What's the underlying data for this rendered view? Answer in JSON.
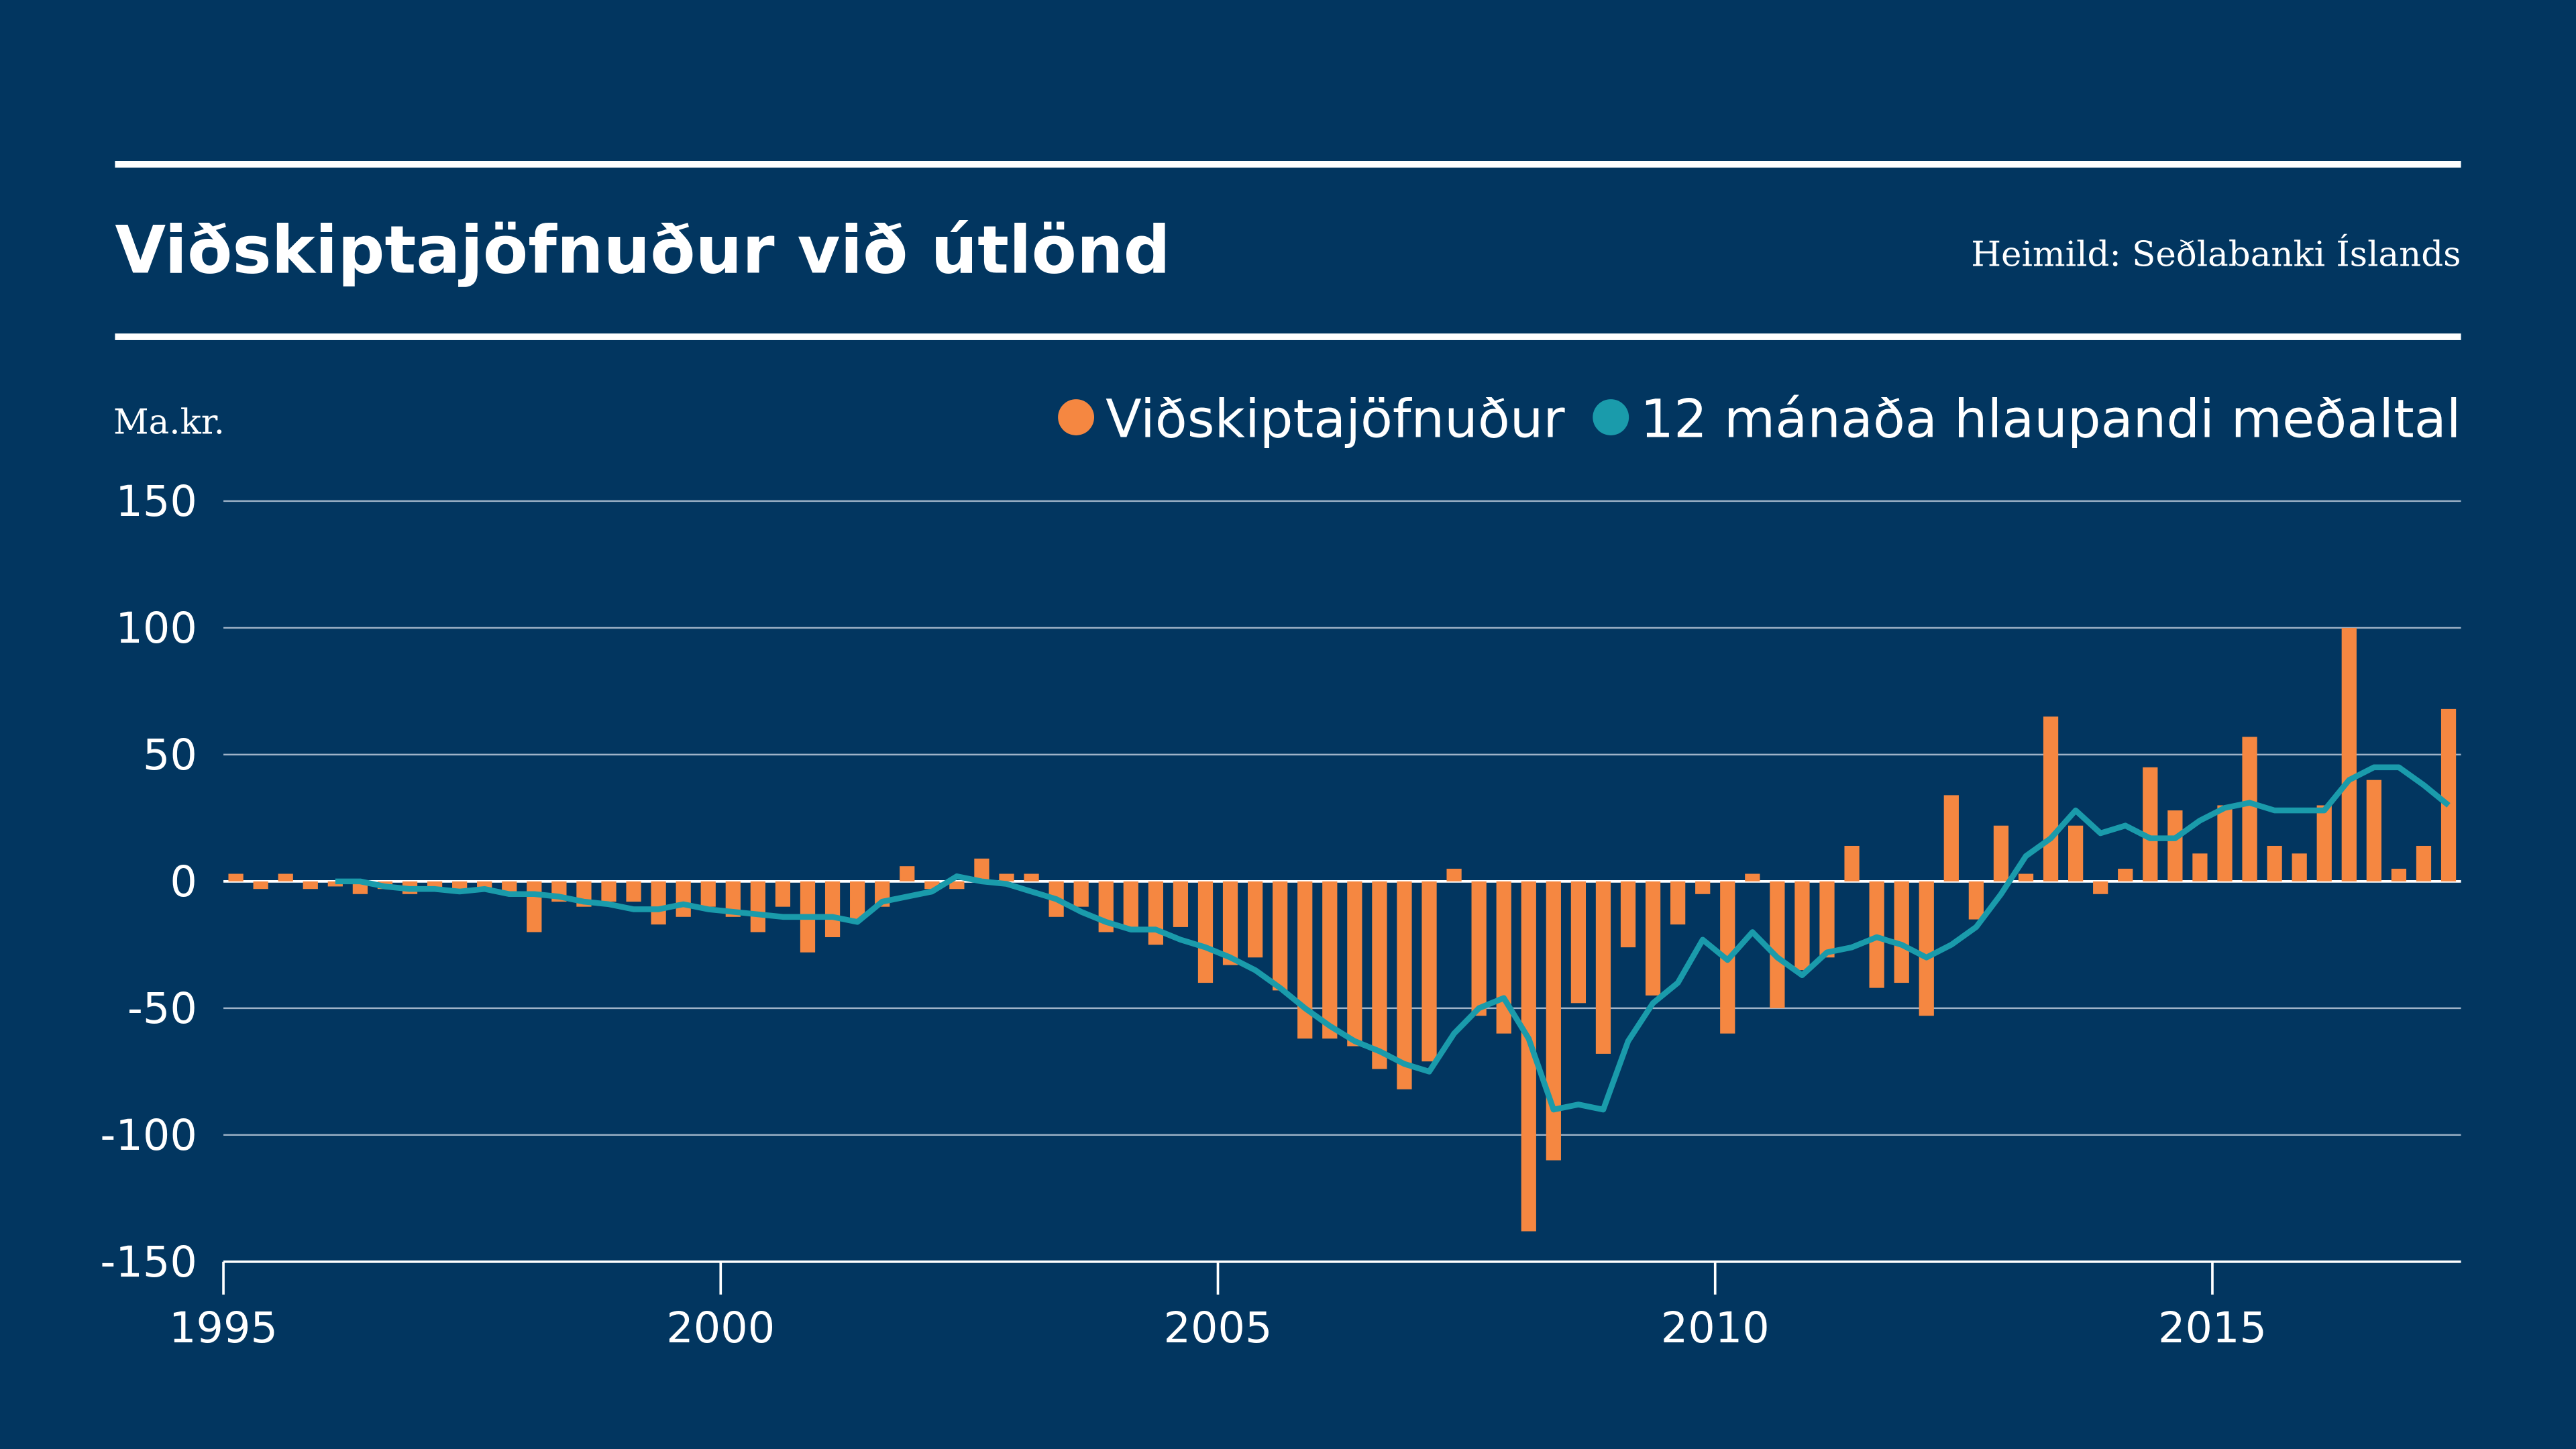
{
  "chart_data": {
    "type": "bar",
    "title": "Viðskiptajöfnuður við útlönd",
    "source": "Heimild: Seðlabanki Íslands",
    "ylabel": "Ma.kr.",
    "xlim": [
      1995,
      2017.5
    ],
    "xticks": [
      1995,
      2000,
      2005,
      2010,
      2015
    ],
    "ylim": [
      -150,
      150
    ],
    "yticks": [
      -150,
      -100,
      -50,
      0,
      50,
      100,
      150
    ],
    "grid": true,
    "legend": "top-right",
    "x": [
      1995.125,
      1995.375,
      1995.625,
      1995.875,
      1996.125,
      1996.375,
      1996.625,
      1996.875,
      1997.125,
      1997.375,
      1997.625,
      1997.875,
      1998.125,
      1998.375,
      1998.625,
      1998.875,
      1999.125,
      1999.375,
      1999.625,
      1999.875,
      2000.125,
      2000.375,
      2000.625,
      2000.875,
      2001.125,
      2001.375,
      2001.625,
      2001.875,
      2002.125,
      2002.375,
      2002.625,
      2002.875,
      2003.125,
      2003.375,
      2003.625,
      2003.875,
      2004.125,
      2004.375,
      2004.625,
      2004.875,
      2005.125,
      2005.375,
      2005.625,
      2005.875,
      2006.125,
      2006.375,
      2006.625,
      2006.875,
      2007.125,
      2007.375,
      2007.625,
      2007.875,
      2008.125,
      2008.375,
      2008.625,
      2008.875,
      2009.125,
      2009.375,
      2009.625,
      2009.875,
      2010.125,
      2010.375,
      2010.625,
      2010.875,
      2011.125,
      2011.375,
      2011.625,
      2011.875,
      2012.125,
      2012.375,
      2012.625,
      2012.875,
      2013.125,
      2013.375,
      2013.625,
      2013.875,
      2014.125,
      2014.375,
      2014.625,
      2014.875,
      2015.125,
      2015.375,
      2015.625,
      2015.875,
      2016.125,
      2016.375,
      2016.625,
      2016.875,
      2017.125,
      2017.375
    ],
    "series": [
      {
        "name": "Viðskiptajöfnuður",
        "type": "bar",
        "color": "#f58741",
        "values": [
          3,
          -3,
          3,
          -3,
          -2,
          -5,
          -3,
          -5,
          -3,
          -3,
          -3,
          -5,
          -20,
          -8,
          -10,
          -8,
          -8,
          -17,
          -14,
          -10,
          -14,
          -20,
          -10,
          -28,
          -22,
          -15,
          -10,
          6,
          -3,
          -3,
          9,
          3,
          3,
          -14,
          -10,
          -20,
          -18,
          -25,
          -18,
          -40,
          -33,
          -30,
          -43,
          -62,
          -62,
          -65,
          -74,
          -82,
          -71,
          5,
          -53,
          -60,
          -138,
          -110,
          -48,
          -68,
          -26,
          -45,
          -17,
          -5,
          -60,
          3,
          -50,
          -35,
          -30,
          14,
          -42,
          -40,
          -53,
          34,
          -15,
          22,
          3,
          65,
          22,
          -5,
          5,
          45,
          28,
          11,
          30,
          57,
          14,
          11,
          30,
          100,
          40,
          5,
          14,
          68
        ]
      },
      {
        "name": "12 mánaða hlaupandi meðaltal",
        "type": "line",
        "color": "#1a9bab",
        "values": [
          null,
          null,
          null,
          null,
          0,
          0,
          -2,
          -3,
          -3,
          -4,
          -3,
          -5,
          -5,
          -6,
          -8,
          -9,
          -11,
          -11,
          -9,
          -11,
          -12,
          -13,
          -14,
          -14,
          -14,
          -16,
          -8,
          -6,
          -4,
          2,
          0,
          -1,
          -4,
          -7,
          -12,
          -16,
          -19,
          -19,
          -23,
          -26,
          -30,
          -35,
          -42,
          -50,
          -57,
          -63,
          -67,
          -72,
          -75,
          -60,
          -50,
          -46,
          -62,
          -90,
          -88,
          -90,
          -63,
          -48,
          -40,
          -23,
          -31,
          -20,
          -30,
          -37,
          -28,
          -26,
          -22,
          -25,
          -30,
          -25,
          -18,
          -5,
          10,
          17,
          28,
          19,
          22,
          17,
          17,
          24,
          29,
          31,
          28,
          28,
          28,
          40,
          45,
          45,
          38,
          30
        ]
      }
    ]
  }
}
